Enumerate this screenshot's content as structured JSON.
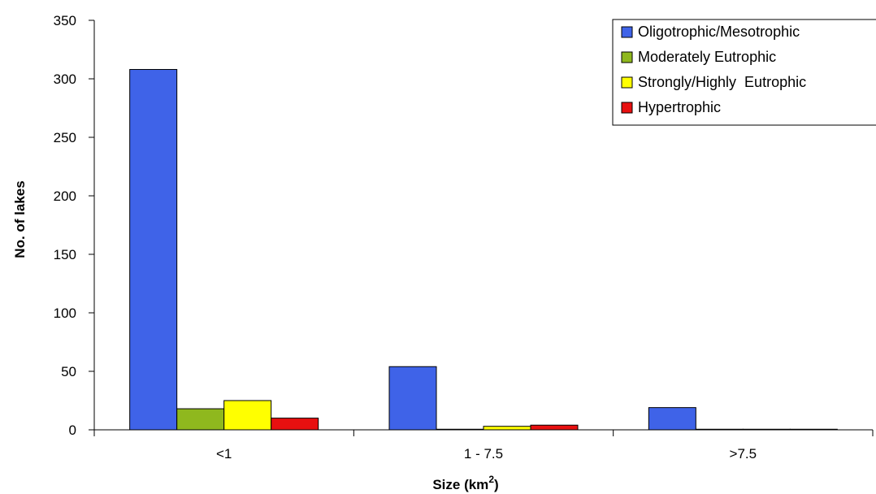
{
  "chart_data": {
    "type": "bar",
    "categories": [
      "<1",
      "1 - 7.5",
      ">7.5"
    ],
    "series": [
      {
        "name": "Oligotrophic/Mesotrophic",
        "color": "#3f63e8",
        "values": [
          308,
          54,
          19
        ]
      },
      {
        "name": "Moderately Eutrophic",
        "color": "#8fb81e",
        "values": [
          18,
          0.5,
          0.5
        ]
      },
      {
        "name": "Strongly/Highly  Eutrophic",
        "color": "#ffff00",
        "values": [
          25,
          3,
          0.5
        ]
      },
      {
        "name": "Hypertrophic",
        "color": "#e81010",
        "values": [
          10,
          4,
          0.5
        ]
      }
    ],
    "xlabel_main": "Size (km",
    "xlabel_sup": "2",
    "xlabel_end": ")",
    "ylabel": "No. of lakes",
    "ylim": [
      0,
      350
    ],
    "yticks": [
      0,
      50,
      100,
      150,
      200,
      250,
      300,
      350
    ],
    "grid": false,
    "legend_position": "top-right"
  }
}
